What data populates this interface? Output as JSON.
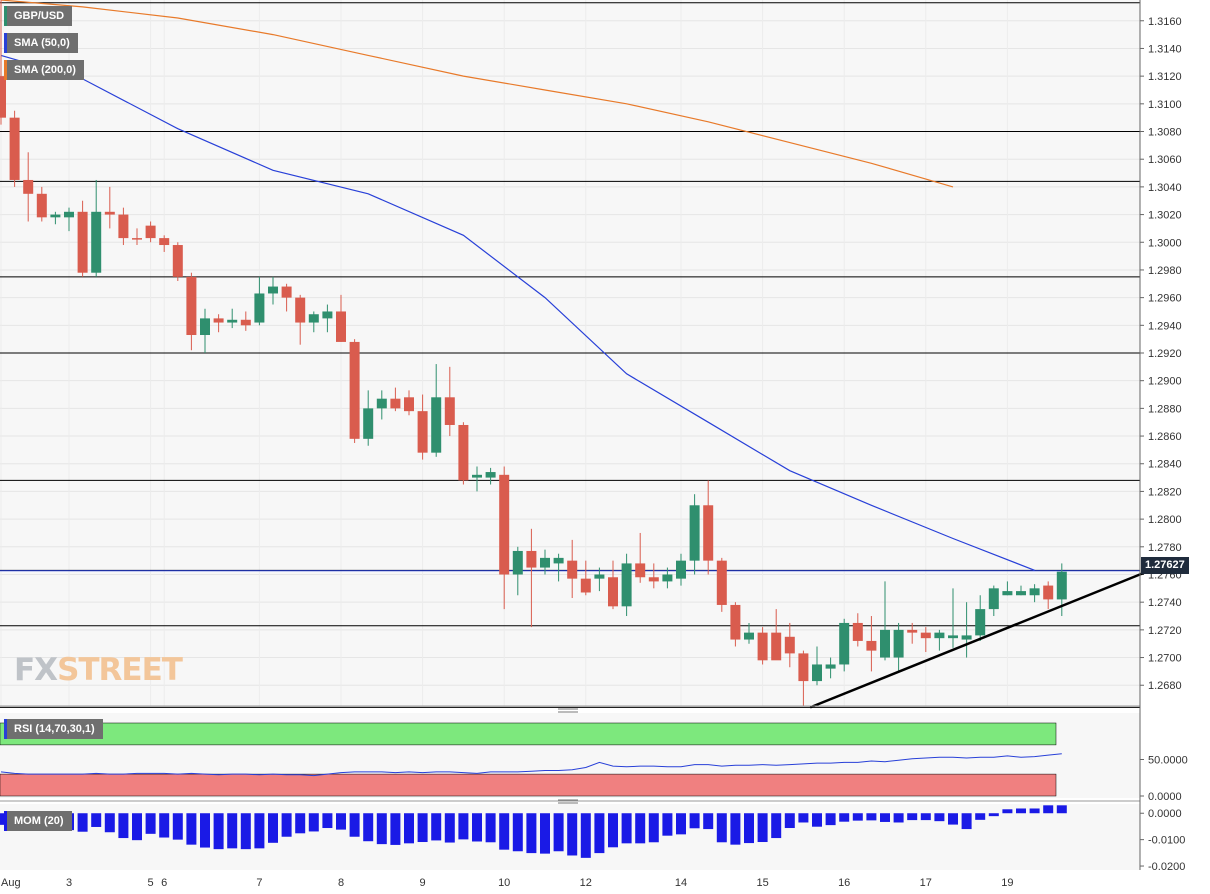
{
  "symbol": "GBP/USD",
  "indicators": {
    "sma50": "SMA (50,0)",
    "sma200": "SMA (200,0)",
    "rsi": "RSI (14,70,30,1)",
    "mom": "MOM (20)"
  },
  "last_price_label": "1.27627",
  "logo": {
    "part1": "FX",
    "part2": "STREET"
  },
  "colors": {
    "bull": "#2f8f6e",
    "bear": "#d95c4e",
    "sma50": "#2840d8",
    "sma200": "#e87a2a",
    "rsi_line": "#2840d8",
    "overbought": "#7de87d",
    "oversold": "#f08080",
    "mom_bar": "#1a1ae6",
    "trendline": "#000000",
    "hline": "#000000",
    "panel_bg": "#f7f7f7"
  },
  "chart_data": [
    {
      "type": "candlestick",
      "title": "GBP/USD",
      "ylim": [
        1.2665,
        1.3175
      ],
      "y_ticks": [
        "1.3160",
        "1.3140",
        "1.3120",
        "1.3100",
        "1.3080",
        "1.3060",
        "1.3040",
        "1.3020",
        "1.3000",
        "1.2980",
        "1.2960",
        "1.2940",
        "1.2920",
        "1.2900",
        "1.2880",
        "1.2860",
        "1.2840",
        "1.2820",
        "1.2800",
        "1.2780",
        "1.2760",
        "1.2740",
        "1.2720",
        "1.2700",
        "1.2680"
      ],
      "x_labels": [
        {
          "label": "Aug",
          "at": 0
        },
        {
          "label": "3",
          "at": 5
        },
        {
          "label": "5",
          "at": 11
        },
        {
          "label": "6",
          "at": 12
        },
        {
          "label": "7",
          "at": 19
        },
        {
          "label": "8",
          "at": 25
        },
        {
          "label": "9",
          "at": 31
        },
        {
          "label": "10",
          "at": 37
        },
        {
          "label": "12",
          "at": 43
        },
        {
          "label": "14",
          "at": 50
        },
        {
          "label": "15",
          "at": 56
        },
        {
          "label": "16",
          "at": 62
        },
        {
          "label": "17",
          "at": 68
        },
        {
          "label": "19",
          "at": 74
        }
      ],
      "candles": [
        [
          1.312,
          1.3175,
          1.3085,
          1.309
        ],
        [
          1.309,
          1.3095,
          1.304,
          1.3045
        ],
        [
          1.3045,
          1.3065,
          1.3015,
          1.3035
        ],
        [
          1.3035,
          1.304,
          1.3015,
          1.3018
        ],
        [
          1.3018,
          1.3022,
          1.3013,
          1.302
        ],
        [
          1.3018,
          1.3025,
          1.3008,
          1.3022
        ],
        [
          1.3022,
          1.303,
          1.2975,
          1.2978
        ],
        [
          1.2978,
          1.3045,
          1.2975,
          1.3022
        ],
        [
          1.3022,
          1.304,
          1.301,
          1.302
        ],
        [
          1.302,
          1.3025,
          1.2998,
          1.3003
        ],
        [
          1.3003,
          1.301,
          1.2998,
          1.3002
        ],
        [
          1.3012,
          1.3015,
          1.3,
          1.3003
        ],
        [
          1.3003,
          1.3005,
          1.2993,
          1.2998
        ],
        [
          1.2998,
          1.3,
          1.2972,
          1.2975
        ],
        [
          1.2975,
          1.2978,
          1.2922,
          1.2933
        ],
        [
          1.2933,
          1.2952,
          1.292,
          1.2945
        ],
        [
          1.2945,
          1.2948,
          1.2935,
          1.2942
        ],
        [
          1.2942,
          1.2952,
          1.2938,
          1.2944
        ],
        [
          1.2944,
          1.295,
          1.2936,
          1.294
        ],
        [
          1.2942,
          1.2975,
          1.294,
          1.2963
        ],
        [
          1.2963,
          1.2975,
          1.2955,
          1.2968
        ],
        [
          1.2968,
          1.297,
          1.295,
          1.296
        ],
        [
          1.296,
          1.2962,
          1.2926,
          1.2942
        ],
        [
          1.2942,
          1.295,
          1.2935,
          1.2948
        ],
        [
          1.2945,
          1.2955,
          1.2935,
          1.295
        ],
        [
          1.295,
          1.2962,
          1.2928,
          1.2928
        ],
        [
          1.2928,
          1.293,
          1.2855,
          1.2858
        ],
        [
          1.2858,
          1.2893,
          1.2853,
          1.288
        ],
        [
          1.288,
          1.2893,
          1.2872,
          1.2887
        ],
        [
          1.2887,
          1.2895,
          1.2878,
          1.288
        ],
        [
          1.2888,
          1.2893,
          1.2875,
          1.2878
        ],
        [
          1.2878,
          1.289,
          1.2843,
          1.2848
        ],
        [
          1.2848,
          1.2912,
          1.2845,
          1.2888
        ],
        [
          1.2888,
          1.291,
          1.286,
          1.2868
        ],
        [
          1.2868,
          1.287,
          1.2825,
          1.2828
        ],
        [
          1.283,
          1.2838,
          1.282,
          1.2832
        ],
        [
          1.283,
          1.2837,
          1.2825,
          1.2834
        ],
        [
          1.2832,
          1.2838,
          1.2735,
          1.276
        ],
        [
          1.276,
          1.278,
          1.2745,
          1.2777
        ],
        [
          1.2777,
          1.2793,
          1.2722,
          1.2765
        ],
        [
          1.2765,
          1.2778,
          1.276,
          1.2772
        ],
        [
          1.2768,
          1.2775,
          1.2755,
          1.2772
        ],
        [
          1.277,
          1.2785,
          1.2743,
          1.2757
        ],
        [
          1.2757,
          1.277,
          1.2745,
          1.2747
        ],
        [
          1.2757,
          1.2765,
          1.2748,
          1.276
        ],
        [
          1.2758,
          1.277,
          1.2735,
          1.2737
        ],
        [
          1.2737,
          1.2775,
          1.273,
          1.2768
        ],
        [
          1.2768,
          1.279,
          1.2754,
          1.2758
        ],
        [
          1.2758,
          1.2768,
          1.275,
          1.2755
        ],
        [
          1.2755,
          1.2765,
          1.275,
          1.276
        ],
        [
          1.2757,
          1.2775,
          1.2752,
          1.277
        ],
        [
          1.277,
          1.2818,
          1.276,
          1.281
        ],
        [
          1.281,
          1.2828,
          1.276,
          1.277
        ],
        [
          1.277,
          1.2772,
          1.2733,
          1.2738
        ],
        [
          1.2738,
          1.274,
          1.2708,
          1.2713
        ],
        [
          1.2713,
          1.2725,
          1.271,
          1.2718
        ],
        [
          1.2718,
          1.2722,
          1.2695,
          1.2698
        ],
        [
          1.2718,
          1.2735,
          1.27,
          1.2698
        ],
        [
          1.2715,
          1.2725,
          1.2693,
          1.2703
        ],
        [
          1.2703,
          1.2705,
          1.2665,
          1.2683
        ],
        [
          1.2683,
          1.2708,
          1.268,
          1.2695
        ],
        [
          1.2692,
          1.27,
          1.2685,
          1.2695
        ],
        [
          1.2695,
          1.2728,
          1.269,
          1.2725
        ],
        [
          1.2725,
          1.2732,
          1.2708,
          1.2712
        ],
        [
          1.2712,
          1.273,
          1.269,
          1.2705
        ],
        [
          1.27,
          1.2755,
          1.2698,
          1.272
        ],
        [
          1.27,
          1.2725,
          1.269,
          1.272
        ],
        [
          1.272,
          1.2725,
          1.271,
          1.2718
        ],
        [
          1.2718,
          1.2722,
          1.2704,
          1.2714
        ],
        [
          1.2714,
          1.272,
          1.2705,
          1.2718
        ],
        [
          1.2714,
          1.275,
          1.2707,
          1.2716
        ],
        [
          1.2713,
          1.274,
          1.27,
          1.2716
        ],
        [
          1.2716,
          1.2745,
          1.2712,
          1.2735
        ],
        [
          1.2735,
          1.2752,
          1.273,
          1.275
        ],
        [
          1.2745,
          1.2755,
          1.2745,
          1.2748
        ],
        [
          1.2745,
          1.2752,
          1.2745,
          1.2748
        ],
        [
          1.2745,
          1.2753,
          1.274,
          1.275
        ],
        [
          1.2752,
          1.2755,
          1.2735,
          1.2742
        ],
        [
          1.2742,
          1.2768,
          1.273,
          1.2762
        ]
      ],
      "sma50": [
        [
          0,
          1.3135
        ],
        [
          6,
          1.3118
        ],
        [
          13,
          1.3082
        ],
        [
          20,
          1.3052
        ],
        [
          27,
          1.3035
        ],
        [
          34,
          1.3005
        ],
        [
          40,
          1.296
        ],
        [
          46,
          1.2905
        ],
        [
          52,
          1.287
        ],
        [
          58,
          1.2835
        ],
        [
          64,
          1.281
        ],
        [
          70,
          1.2786
        ],
        [
          76,
          1.2763
        ]
      ],
      "sma200": [
        [
          0,
          1.3175
        ],
        [
          6,
          1.317
        ],
        [
          13,
          1.3162
        ],
        [
          20,
          1.315
        ],
        [
          27,
          1.3135
        ],
        [
          34,
          1.312
        ],
        [
          40,
          1.311
        ],
        [
          46,
          1.31
        ],
        [
          52,
          1.3087
        ],
        [
          58,
          1.3072
        ],
        [
          64,
          1.3057
        ],
        [
          70,
          1.304
        ]
      ],
      "horizontal_levels": [
        1.3173,
        1.308,
        1.3044,
        1.2975,
        1.292,
        1.2828,
        1.2763,
        1.2723,
        1.2664
      ],
      "trendline": [
        [
          1.2664,
          59.5
        ],
        [
          1.276,
          83
        ]
      ]
    },
    {
      "type": "line",
      "title": "RSI (14,70,30,1)",
      "ylim": [
        0,
        100
      ],
      "y_ticks": [
        "50.0000",
        "0.0000"
      ],
      "overbought_band": [
        70,
        100
      ],
      "oversold_band": [
        0,
        30
      ],
      "values": [
        33,
        31,
        30,
        30,
        30,
        30,
        30,
        31,
        30,
        30,
        31,
        31,
        31,
        30,
        31,
        30,
        29,
        30,
        30,
        29,
        30,
        29,
        29,
        28,
        30,
        32,
        33,
        33,
        33,
        32,
        33,
        32,
        33,
        33,
        32,
        31,
        33,
        33,
        33,
        34,
        35,
        35,
        36,
        39,
        46,
        41,
        40,
        41,
        41,
        40,
        40,
        43,
        43,
        41,
        42,
        42,
        43,
        42,
        43,
        44,
        45,
        45,
        46,
        46,
        48,
        47,
        49,
        51,
        52,
        53,
        53,
        52,
        53,
        53,
        55,
        53,
        54,
        56,
        58
      ]
    },
    {
      "type": "bar",
      "title": "MOM (20)",
      "ylim": [
        -0.0215,
        0.0035
      ],
      "y_ticks": [
        "0.0000",
        "-0.0100",
        "-0.0200"
      ],
      "values": [
        -0.0044,
        -0.0055,
        -0.006,
        -0.0062,
        -0.0055,
        -0.0064,
        -0.007,
        -0.0052,
        -0.0072,
        -0.0094,
        -0.0102,
        -0.0078,
        -0.0092,
        -0.01,
        -0.0119,
        -0.013,
        -0.0136,
        -0.0133,
        -0.0136,
        -0.0133,
        -0.0112,
        -0.0089,
        -0.0076,
        -0.0069,
        -0.0056,
        -0.0062,
        -0.0089,
        -0.0106,
        -0.0117,
        -0.012,
        -0.0114,
        -0.0109,
        -0.0103,
        -0.0111,
        -0.0099,
        -0.0107,
        -0.011,
        -0.0138,
        -0.0144,
        -0.0151,
        -0.0153,
        -0.0144,
        -0.016,
        -0.0169,
        -0.0151,
        -0.0129,
        -0.0114,
        -0.0114,
        -0.011,
        -0.0085,
        -0.008,
        -0.0057,
        -0.006,
        -0.011,
        -0.0119,
        -0.0113,
        -0.0109,
        -0.0094,
        -0.0056,
        -0.0035,
        -0.0051,
        -0.0045,
        -0.0032,
        -0.0028,
        -0.0027,
        -0.0033,
        -0.0035,
        -0.0026,
        -0.0026,
        -0.003,
        -0.0043,
        -0.006,
        -0.0025,
        -0.0011,
        0.0015,
        0.0018,
        0.0018,
        0.003,
        0.003
      ]
    }
  ]
}
